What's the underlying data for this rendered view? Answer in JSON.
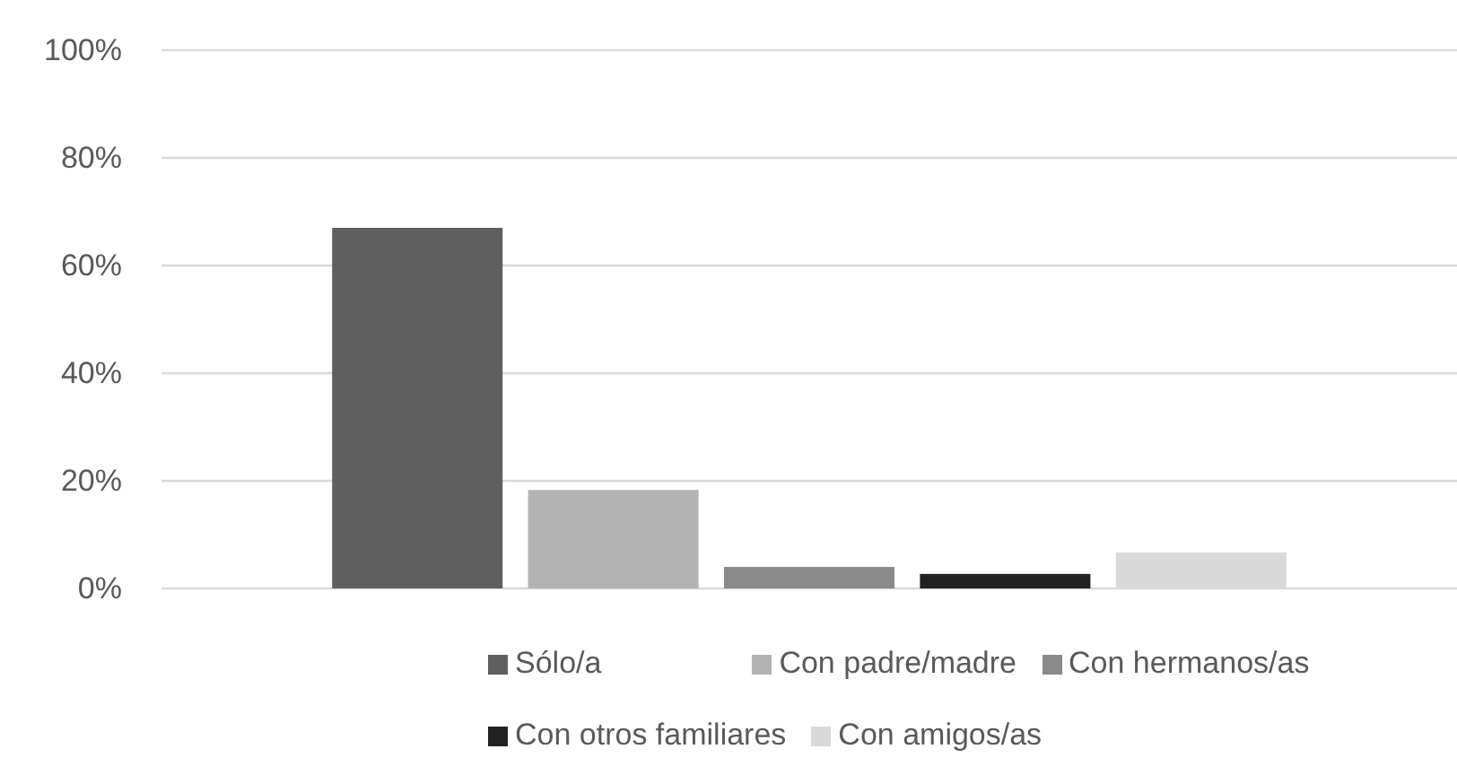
{
  "chart_data": {
    "type": "bar",
    "categories": [
      null
    ],
    "series": [
      {
        "name": "Sólo/a",
        "color": "#5f5f5f",
        "values": [
          67
        ]
      },
      {
        "name": "Con padre/madre",
        "color": "#b3b3b3",
        "values": [
          18.3
        ]
      },
      {
        "name": "Con hermanos/as",
        "color": "#8a8a8a",
        "values": [
          4
        ]
      },
      {
        "name": "Con otros familiares",
        "color": "#222222",
        "values": [
          2.7
        ]
      },
      {
        "name": "Con amigos/as",
        "color": "#d9d9d9",
        "values": [
          6.7
        ]
      }
    ],
    "ylim": [
      0,
      100
    ],
    "yticks": [
      {
        "value": 0,
        "label": "0%"
      },
      {
        "value": 20,
        "label": "20%"
      },
      {
        "value": 40,
        "label": "40%"
      },
      {
        "value": 60,
        "label": "60%"
      },
      {
        "value": 80,
        "label": "80%"
      },
      {
        "value": 100,
        "label": "100%"
      }
    ],
    "grid": "y",
    "legend": "bottom"
  }
}
